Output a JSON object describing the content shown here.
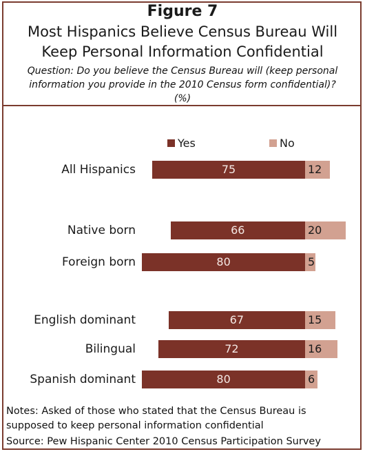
{
  "header": {
    "figure_label": "Figure 7",
    "title_line1": "Most Hispanics Believe Census Bureau Will",
    "title_line2": "Keep Personal Information Confidential",
    "question_line1": "Question: Do you believe the Census Bureau will (keep personal",
    "question_line2": "information you provide in the 2010 Census form confidential)?",
    "question_line3": "(%)"
  },
  "colors": {
    "yes": "#7b3228",
    "no": "#d2a191",
    "border": "#7a3b2e"
  },
  "chart_data": {
    "type": "bar",
    "orientation": "horizontal",
    "stacked": true,
    "categories": [
      "All Hispanics",
      "Native born",
      "Foreign born",
      "English dominant",
      "Bilingual",
      "Spanish dominant"
    ],
    "series": [
      {
        "name": "Yes",
        "values": [
          75,
          66,
          80,
          67,
          72,
          80
        ]
      },
      {
        "name": "No",
        "values": [
          12,
          20,
          5,
          15,
          16,
          6
        ]
      }
    ],
    "legend_position": "top",
    "grid": false
  },
  "footer": {
    "notes_line1": "Notes: Asked of those who stated that the Census Bureau is",
    "notes_line2": "supposed to keep personal information confidential",
    "source": "Source: Pew Hispanic Center 2010 Census Participation Survey"
  }
}
